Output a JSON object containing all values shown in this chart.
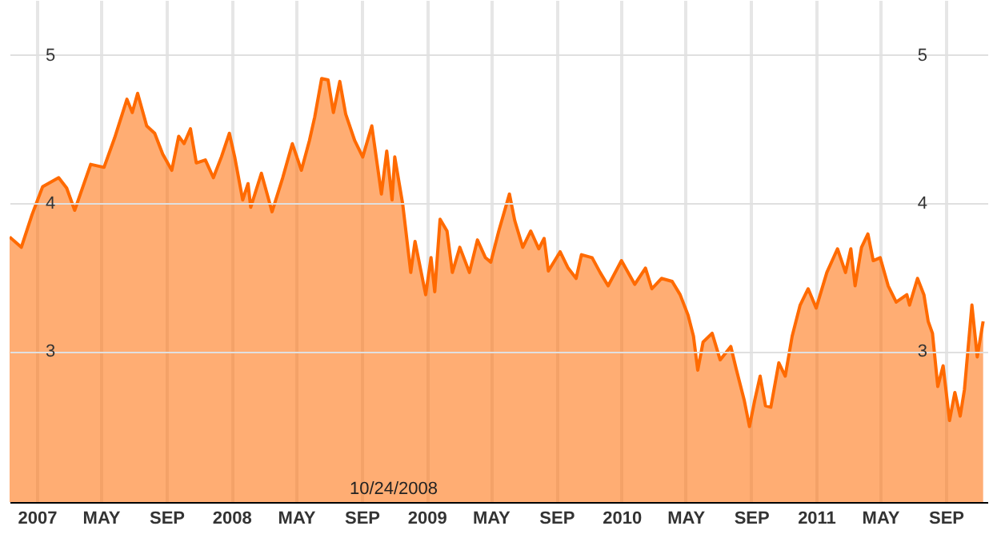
{
  "chart_data": {
    "type": "area",
    "x": [
      "2006-11-11",
      "2006-12-03",
      "2006-12-23",
      "2007-01-12",
      "2007-02-11",
      "2007-02-26",
      "2007-03-13",
      "2007-04-12",
      "2007-05-07",
      "2007-05-27",
      "2007-06-19",
      "2007-06-29",
      "2007-07-09",
      "2007-07-26",
      "2007-08-10",
      "2007-08-25",
      "2007-09-11",
      "2007-09-24",
      "2007-10-04",
      "2007-10-16",
      "2007-10-27",
      "2007-11-13",
      "2007-11-28",
      "2007-12-13",
      "2007-12-28",
      "2008-01-07",
      "2008-01-22",
      "2008-02-01",
      "2008-02-06",
      "2008-02-26",
      "2008-03-17",
      "2008-04-06",
      "2008-04-24",
      "2008-05-11",
      "2008-05-26",
      "2008-06-05",
      "2008-06-18",
      "2008-06-30",
      "2008-07-10",
      "2008-07-22",
      "2008-08-02",
      "2008-08-19",
      "2008-09-03",
      "2008-09-20",
      "2008-10-08",
      "2008-10-18",
      "2008-10-28",
      "2008-11-02",
      "2008-11-17",
      "2008-12-02",
      "2008-12-10",
      "2008-12-30",
      "2009-01-09",
      "2009-01-16",
      "2009-01-26",
      "2009-02-08",
      "2009-02-18",
      "2009-03-04",
      "2009-03-22",
      "2009-04-06",
      "2009-04-21",
      "2009-05-01",
      "2009-05-16",
      "2009-06-05",
      "2009-06-15",
      "2009-06-30",
      "2009-07-15",
      "2009-07-30",
      "2009-08-09",
      "2009-08-17",
      "2009-09-08",
      "2009-09-23",
      "2009-10-08",
      "2009-10-18",
      "2009-11-07",
      "2009-11-22",
      "2009-12-07",
      "2010-01-01",
      "2010-01-26",
      "2010-02-15",
      "2010-02-27",
      "2010-03-17",
      "2010-04-06",
      "2010-04-21",
      "2010-05-06",
      "2010-05-16",
      "2010-05-24",
      "2010-06-03",
      "2010-06-20",
      "2010-07-05",
      "2010-07-25",
      "2010-08-04",
      "2010-08-19",
      "2010-08-29",
      "2010-09-08",
      "2010-09-18",
      "2010-09-28",
      "2010-10-08",
      "2010-10-23",
      "2010-11-04",
      "2010-11-17",
      "2010-12-02",
      "2010-12-17",
      "2011-01-01",
      "2011-01-21",
      "2011-02-10",
      "2011-02-25",
      "2011-03-07",
      "2011-03-15",
      "2011-03-27",
      "2011-04-08",
      "2011-04-18",
      "2011-05-01",
      "2011-05-16",
      "2011-05-31",
      "2011-06-20",
      "2011-06-25",
      "2011-07-10",
      "2011-07-22",
      "2011-07-30",
      "2011-08-07",
      "2011-08-17",
      "2011-08-27",
      "2011-09-08",
      "2011-09-18",
      "2011-09-28",
      "2011-10-06",
      "2011-10-20",
      "2011-10-30",
      "2011-11-10"
    ],
    "series": [
      {
        "color": "#ff6a00",
        "values": [
          3.77,
          3.7,
          3.92,
          4.11,
          4.17,
          4.1,
          3.95,
          4.26,
          4.24,
          4.44,
          4.7,
          4.61,
          4.74,
          4.52,
          4.47,
          4.33,
          4.22,
          4.45,
          4.4,
          4.5,
          4.27,
          4.29,
          4.17,
          4.31,
          4.47,
          4.31,
          4.02,
          4.13,
          3.97,
          4.2,
          3.94,
          4.17,
          4.4,
          4.22,
          4.42,
          4.58,
          4.84,
          4.83,
          4.61,
          4.82,
          4.6,
          4.42,
          4.31,
          4.52,
          4.06,
          4.35,
          4.02,
          4.31,
          3.99,
          3.53,
          3.74,
          3.38,
          3.63,
          3.4,
          3.89,
          3.81,
          3.53,
          3.7,
          3.53,
          3.75,
          3.63,
          3.6,
          3.81,
          4.06,
          3.88,
          3.7,
          3.81,
          3.69,
          3.76,
          3.54,
          3.67,
          3.56,
          3.49,
          3.65,
          3.63,
          3.53,
          3.44,
          3.61,
          3.45,
          3.56,
          3.42,
          3.49,
          3.47,
          3.38,
          3.24,
          3.1,
          2.87,
          3.06,
          3.12,
          2.94,
          3.03,
          2.88,
          2.67,
          2.49,
          2.67,
          2.83,
          2.63,
          2.62,
          2.92,
          2.83,
          3.1,
          3.31,
          3.42,
          3.29,
          3.53,
          3.69,
          3.53,
          3.69,
          3.44,
          3.7,
          3.79,
          3.61,
          3.63,
          3.44,
          3.33,
          3.38,
          3.31,
          3.49,
          3.38,
          3.2,
          3.12,
          2.76,
          2.9,
          2.53,
          2.72,
          2.56,
          2.74,
          3.31,
          2.96,
          3.2
        ]
      }
    ],
    "xlim": [
      "2006-11-11",
      "2011-11-18"
    ],
    "xticks": [
      {
        "value": "2007-01-01",
        "label": "2007"
      },
      {
        "value": "2007-05-01",
        "label": "MAY"
      },
      {
        "value": "2007-09-01",
        "label": "SEP"
      },
      {
        "value": "2008-01-01",
        "label": "2008"
      },
      {
        "value": "2008-05-01",
        "label": "MAY"
      },
      {
        "value": "2008-09-01",
        "label": "SEP"
      },
      {
        "value": "2009-01-01",
        "label": "2009"
      },
      {
        "value": "2009-05-01",
        "label": "MAY"
      },
      {
        "value": "2009-09-01",
        "label": "SEP"
      },
      {
        "value": "2010-01-01",
        "label": "2010"
      },
      {
        "value": "2010-05-01",
        "label": "MAY"
      },
      {
        "value": "2010-09-01",
        "label": "SEP"
      },
      {
        "value": "2011-01-01",
        "label": "2011"
      },
      {
        "value": "2011-05-01",
        "label": "MAY"
      },
      {
        "value": "2011-09-01",
        "label": "SEP"
      }
    ],
    "ylim": [
      1.98,
      5.37
    ],
    "yticks": [
      3,
      4,
      5
    ],
    "y2lim": [
      1.98,
      5.37
    ],
    "y2ticks": [
      3,
      4,
      5
    ],
    "grid": true,
    "annotations": [
      "10/24/2008"
    ]
  }
}
